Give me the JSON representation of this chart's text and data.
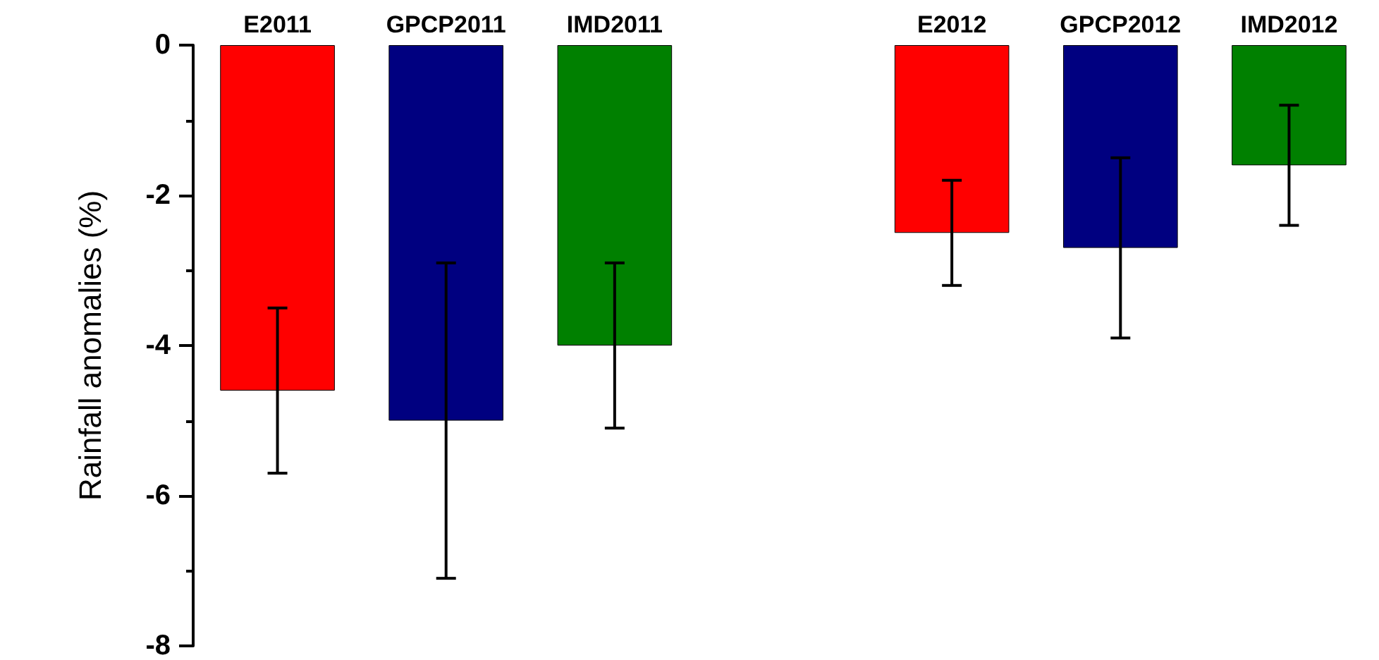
{
  "chart_data": {
    "type": "bar",
    "ylabel": "Rainfall anomalies (%)",
    "categories": [
      "E2011",
      "GPCP2011",
      "IMD2011",
      null,
      "E2012",
      "GPCP2012",
      "IMD2012"
    ],
    "values": [
      -4.6,
      -5.0,
      -4.0,
      null,
      -2.5,
      -2.7,
      -1.6
    ],
    "errors": [
      1.1,
      2.1,
      1.1,
      null,
      0.7,
      1.2,
      0.8
    ],
    "colors": [
      "#ff0000",
      "#000080",
      "#008000",
      null,
      "#ff0000",
      "#000080",
      "#008000"
    ],
    "ylim": [
      -8,
      0
    ],
    "yticks": [
      -8,
      -6,
      -4,
      -2,
      0
    ],
    "grid": false
  }
}
